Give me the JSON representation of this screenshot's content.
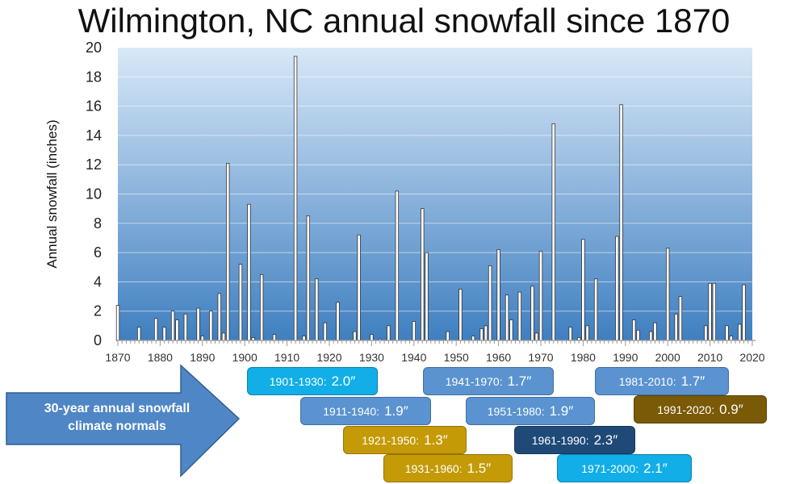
{
  "chart_data": {
    "type": "bar",
    "title": "Wilmington, NC annual snowfall since 1870",
    "ylabel": "Annual snowfall (inches)",
    "xlabel": "",
    "xlim": [
      1870,
      2020
    ],
    "ylim": [
      0,
      20
    ],
    "x_ticks": [
      1870,
      1880,
      1890,
      1900,
      1910,
      1920,
      1930,
      1940,
      1950,
      1960,
      1970,
      1980,
      1990,
      2000,
      2010,
      2020
    ],
    "y_ticks": [
      0,
      2,
      4,
      6,
      8,
      10,
      12,
      14,
      16,
      18,
      20
    ],
    "grid": true,
    "background_gradient": [
      "#d8e8f8",
      "#3f7fc0"
    ],
    "bar_color": "#ffffff",
    "points": [
      {
        "year": 1870,
        "value": 2.4
      },
      {
        "year": 1875,
        "value": 0.9
      },
      {
        "year": 1879,
        "value": 1.5
      },
      {
        "year": 1881,
        "value": 0.9
      },
      {
        "year": 1883,
        "value": 2.0
      },
      {
        "year": 1884,
        "value": 1.4
      },
      {
        "year": 1886,
        "value": 1.8
      },
      {
        "year": 1889,
        "value": 2.2
      },
      {
        "year": 1890,
        "value": 0.3
      },
      {
        "year": 1892,
        "value": 2.0
      },
      {
        "year": 1894,
        "value": 3.2
      },
      {
        "year": 1895,
        "value": 0.5
      },
      {
        "year": 1896,
        "value": 12.1
      },
      {
        "year": 1899,
        "value": 5.2
      },
      {
        "year": 1901,
        "value": 9.3
      },
      {
        "year": 1902,
        "value": 0.2
      },
      {
        "year": 1904,
        "value": 4.5
      },
      {
        "year": 1907,
        "value": 0.4
      },
      {
        "year": 1912,
        "value": 19.4
      },
      {
        "year": 1914,
        "value": 0.3
      },
      {
        "year": 1915,
        "value": 8.5
      },
      {
        "year": 1917,
        "value": 4.2
      },
      {
        "year": 1919,
        "value": 1.2
      },
      {
        "year": 1922,
        "value": 2.6
      },
      {
        "year": 1926,
        "value": 0.6
      },
      {
        "year": 1927,
        "value": 7.2
      },
      {
        "year": 1930,
        "value": 0.4
      },
      {
        "year": 1932,
        "value": 0.1
      },
      {
        "year": 1934,
        "value": 1.0
      },
      {
        "year": 1936,
        "value": 10.2
      },
      {
        "year": 1940,
        "value": 1.3
      },
      {
        "year": 1942,
        "value": 9.0
      },
      {
        "year": 1943,
        "value": 6.0
      },
      {
        "year": 1948,
        "value": 0.6
      },
      {
        "year": 1951,
        "value": 3.5
      },
      {
        "year": 1954,
        "value": 0.3
      },
      {
        "year": 1956,
        "value": 0.8
      },
      {
        "year": 1957,
        "value": 1.0
      },
      {
        "year": 1958,
        "value": 5.1
      },
      {
        "year": 1960,
        "value": 6.2
      },
      {
        "year": 1962,
        "value": 3.1
      },
      {
        "year": 1963,
        "value": 1.4
      },
      {
        "year": 1965,
        "value": 3.3
      },
      {
        "year": 1968,
        "value": 3.7
      },
      {
        "year": 1969,
        "value": 0.5
      },
      {
        "year": 1970,
        "value": 6.1
      },
      {
        "year": 1973,
        "value": 14.8
      },
      {
        "year": 1977,
        "value": 0.9
      },
      {
        "year": 1979,
        "value": 0.2
      },
      {
        "year": 1980,
        "value": 6.9
      },
      {
        "year": 1981,
        "value": 1.0
      },
      {
        "year": 1983,
        "value": 4.2
      },
      {
        "year": 1988,
        "value": 7.1
      },
      {
        "year": 1989,
        "value": 16.1
      },
      {
        "year": 1992,
        "value": 1.4
      },
      {
        "year": 1993,
        "value": 0.7
      },
      {
        "year": 1996,
        "value": 0.6
      },
      {
        "year": 1997,
        "value": 1.2
      },
      {
        "year": 2000,
        "value": 6.3
      },
      {
        "year": 2002,
        "value": 1.8
      },
      {
        "year": 2003,
        "value": 3.0
      },
      {
        "year": 2009,
        "value": 1.0
      },
      {
        "year": 2010,
        "value": 3.9
      },
      {
        "year": 2011,
        "value": 3.9
      },
      {
        "year": 2014,
        "value": 1.0
      },
      {
        "year": 2015,
        "value": 0.3
      },
      {
        "year": 2017,
        "value": 1.1
      },
      {
        "year": 2018,
        "value": 3.8
      }
    ]
  },
  "arrow": {
    "line1": "30-year annual snowfall",
    "line2": "climate normals",
    "color": "#4f86c6"
  },
  "normals": [
    {
      "period": "1901-1930:",
      "value": "2.0″",
      "color": "#11aee8"
    },
    {
      "period": "1911-1940:",
      "value": "1.9″",
      "color": "#5a93d0"
    },
    {
      "period": "1921-1950:",
      "value": "1.3″",
      "color": "#c49a06"
    },
    {
      "period": "1931-1960:",
      "value": "1.5″",
      "color": "#c49a06"
    },
    {
      "period": "1941-1970:",
      "value": "1.7″",
      "color": "#5a93d0"
    },
    {
      "period": "1951-1980:",
      "value": "1.9″",
      "color": "#5a93d0"
    },
    {
      "period": "1961-1990:",
      "value": "2.3″",
      "color": "#1f4a78"
    },
    {
      "period": "1971-2000:",
      "value": "2.1″",
      "color": "#11aee8"
    },
    {
      "period": "1981-2010:",
      "value": "1.7″",
      "color": "#5a93d0"
    },
    {
      "period": "1991-2020:",
      "value": "0.9″",
      "color": "#7a5a06"
    }
  ]
}
